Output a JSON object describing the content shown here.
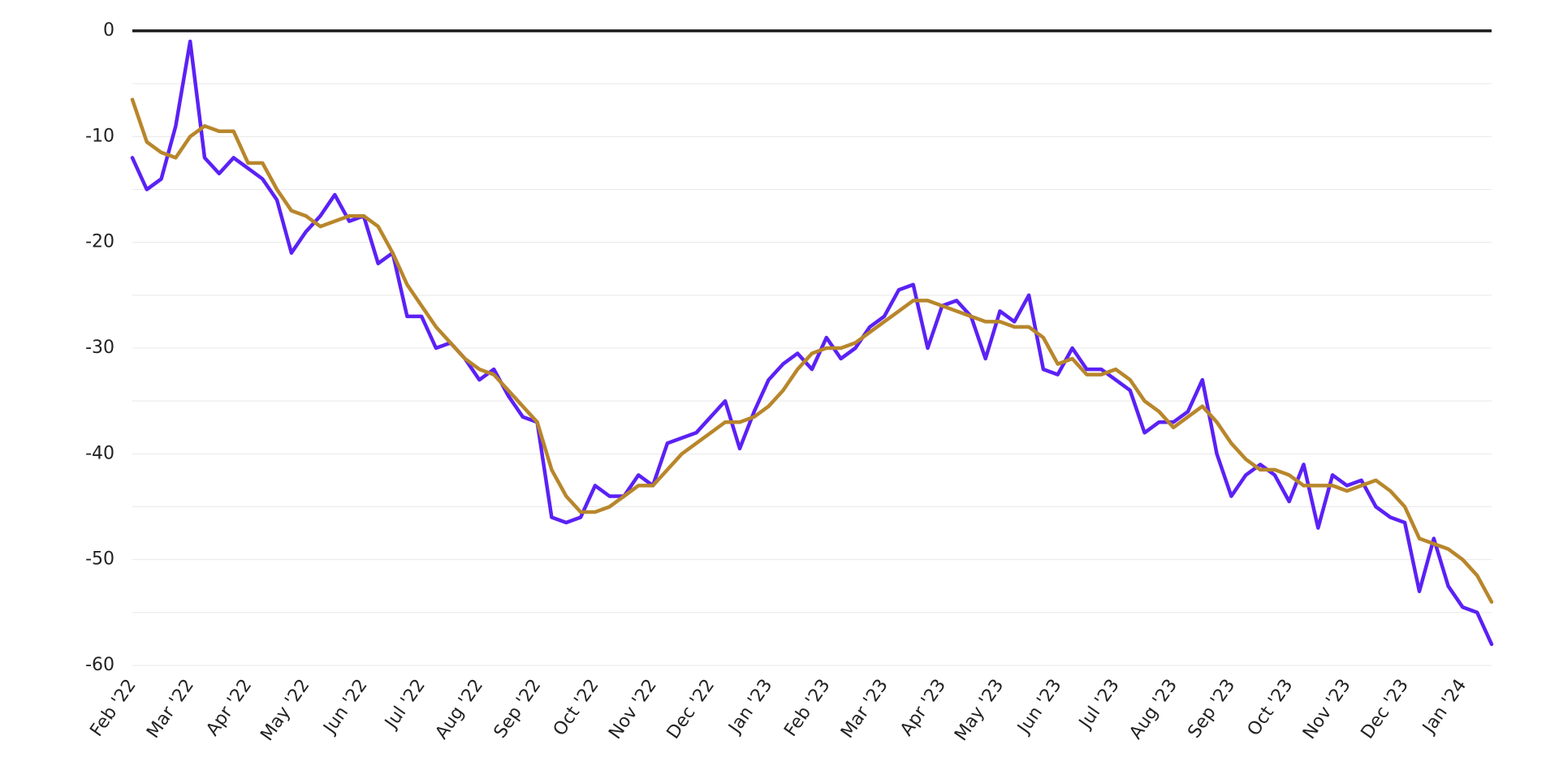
{
  "chart_data": {
    "type": "line",
    "categories": [
      "Feb '22",
      null,
      null,
      null,
      "Mar '22",
      null,
      null,
      null,
      "Apr '22",
      null,
      null,
      null,
      "May '22",
      null,
      null,
      null,
      "Jun '22",
      null,
      null,
      null,
      "Jul '22",
      null,
      null,
      null,
      "Aug '22",
      null,
      null,
      null,
      "Sep '22",
      null,
      null,
      null,
      "Oct '22",
      null,
      null,
      null,
      "Nov '22",
      null,
      null,
      null,
      "Dec '22",
      null,
      null,
      null,
      "Jan '23",
      null,
      null,
      null,
      "Feb '23",
      null,
      null,
      null,
      "Mar '23",
      null,
      null,
      null,
      "Apr '23",
      null,
      null,
      null,
      "May '23",
      null,
      null,
      null,
      "Jun '23",
      null,
      null,
      null,
      "Jul '23",
      null,
      null,
      null,
      "Aug '23",
      null,
      null,
      null,
      "Sep '23",
      null,
      null,
      null,
      "Oct '23",
      null,
      null,
      null,
      "Nov '23",
      null,
      null,
      null,
      "Dec '23",
      null,
      null,
      null,
      "Jan '24",
      null,
      null
    ],
    "series": [
      {
        "color": "#5b21f5",
        "values": [
          -12,
          -15,
          -14,
          -9,
          -1,
          -12,
          -13.5,
          -12,
          -13,
          -14,
          -16,
          -21,
          -19,
          -17.5,
          -15.5,
          -18,
          -17.5,
          -22,
          -21,
          -27,
          -27,
          -30,
          -29.5,
          -31,
          -33,
          -32,
          -34.5,
          -36.5,
          -37,
          -46,
          -46.5,
          -46,
          -43,
          -44,
          -44,
          -42,
          -43,
          -39,
          -38.5,
          -38,
          -36.5,
          -35,
          -39.5,
          -36,
          -33,
          -31.5,
          -30.5,
          -32,
          -29,
          -31,
          -30,
          -28,
          -27,
          -24.5,
          -24,
          -30,
          -26,
          -25.5,
          -27,
          -31,
          -26.5,
          -27.5,
          -25,
          -32,
          -32.5,
          -30,
          -32,
          -32,
          -33,
          -34,
          -38,
          -37,
          -37,
          -36,
          -33,
          -40,
          -44,
          -42,
          -41,
          -42,
          -44.5,
          -41,
          -47,
          -42,
          -43,
          -42.5,
          -45,
          -46,
          -46.5,
          -53,
          -48,
          -52.5,
          -54.5,
          -55,
          -58
        ]
      },
      {
        "color": "#b8862b",
        "values": [
          -6.5,
          -10.5,
          -11.5,
          -12,
          -10,
          -9,
          -9.5,
          -9.5,
          -12.5,
          -12.5,
          -15,
          -17,
          -17.5,
          -18.5,
          -18,
          -17.5,
          -17.5,
          -18.5,
          -21,
          -24,
          -26,
          -28,
          -29.5,
          -31,
          -32,
          -32.5,
          -34,
          -35.5,
          -37,
          -41.5,
          -44,
          -45.5,
          -45.5,
          -45,
          -44,
          -43,
          -43,
          -41.5,
          -40,
          -39,
          -38,
          -37,
          -37,
          -36.5,
          -35.5,
          -34,
          -32,
          -30.5,
          -30,
          -30,
          -29.5,
          -28.5,
          -27.5,
          -26.5,
          -25.5,
          -25.5,
          -26,
          -26.5,
          -27,
          -27.5,
          -27.5,
          -28,
          -28,
          -29,
          -31.5,
          -31,
          -32.5,
          -32.5,
          -32,
          -33,
          -35,
          -36,
          -37.5,
          -36.5,
          -35.5,
          -37,
          -39,
          -40.5,
          -41.5,
          -41.5,
          -42,
          -43,
          -43,
          -43,
          -43.5,
          -43,
          -42.5,
          -43.5,
          -45,
          -48,
          -48.5,
          -49,
          -50,
          -51.5,
          -54
        ]
      }
    ],
    "ylim": [
      -60,
      0
    ],
    "yticks": [
      0,
      -10,
      -20,
      -30,
      -40,
      -50,
      -60
    ],
    "minor_yticks": [
      -5,
      -15,
      -25,
      -35,
      -45,
      -55
    ],
    "grid": true,
    "zero_line": true
  }
}
